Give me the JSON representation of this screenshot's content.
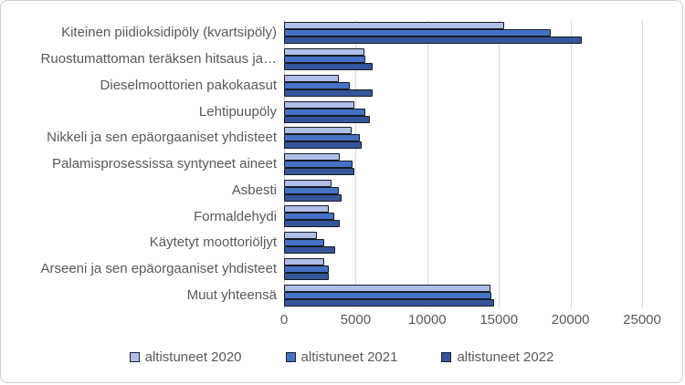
{
  "chart_data": {
    "type": "bar",
    "orientation": "horizontal",
    "title": "",
    "categories": [
      "Kiteinen piidioksidipöly (kvartsipöly)",
      "Ruostumattoman teräksen hitsaus ja…",
      "Dieselmoottorien pakokaasut",
      "Lehtipuupöly",
      "Nikkeli ja sen epäorgaaniset yhdisteet",
      "Palamisprosessissa syntyneet aineet",
      "Asbesti",
      "Formaldehydi",
      "Käytetyt moottoriöljyt",
      "Arseeni ja sen epäorgaaniset yhdisteet",
      "Muut yhteensä"
    ],
    "series": [
      {
        "name": "altistuneet 2020",
        "color": "#aebee6",
        "values": [
          15400,
          5600,
          3800,
          4900,
          4700,
          3900,
          3300,
          3100,
          2300,
          2800,
          14400
        ]
      },
      {
        "name": "altistuneet 2021",
        "color": "#4472c4",
        "values": [
          18600,
          5700,
          4600,
          5700,
          5300,
          4800,
          3800,
          3500,
          2800,
          3100,
          14500
        ]
      },
      {
        "name": "altistuneet 2022",
        "color": "#35569b",
        "values": [
          20800,
          6200,
          6200,
          6000,
          5400,
          4900,
          4000,
          3900,
          3600,
          3100,
          14700
        ]
      }
    ],
    "xlim": [
      0,
      25000
    ],
    "x_ticks": [
      0,
      5000,
      10000,
      15000,
      20000,
      25000
    ],
    "grid": true,
    "legend_position": "bottom",
    "colors": {
      "text": "#595959",
      "gridline": "#d9d9d9",
      "bar_outline": "#161b22",
      "frame_border": "#cdcdcd"
    }
  }
}
